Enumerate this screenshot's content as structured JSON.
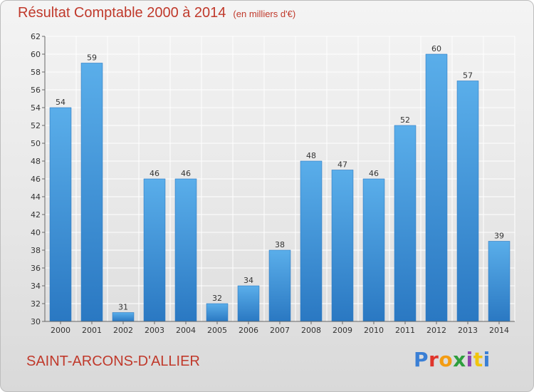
{
  "title": {
    "main": "Résultat Comptable 2000 à 2014",
    "unit": "(en milliers d'€)"
  },
  "footer": {
    "town": "SAINT-ARCONS-D'ALLIER",
    "logo": "Proxiti",
    "logo_colors": [
      "#3a7fd5",
      "#e0342b",
      "#f39c12",
      "#2e9e3e",
      "#8e44ad",
      "#f1c40f",
      "#3a7fd5"
    ]
  },
  "colors": {
    "bar": "#4a9fe0",
    "bar_dark": "#2a78c2",
    "grid": "#ffffff",
    "accent": "#c0392b"
  },
  "chart_data": {
    "type": "bar",
    "categories": [
      "2000",
      "2001",
      "2002",
      "2003",
      "2004",
      "2005",
      "2006",
      "2007",
      "2008",
      "2009",
      "2010",
      "2011",
      "2012",
      "2013",
      "2014"
    ],
    "values": [
      54,
      59,
      31,
      46,
      46,
      32,
      34,
      38,
      48,
      47,
      46,
      52,
      60,
      57,
      39
    ],
    "title": "Résultat Comptable 2000 à 2014",
    "xlabel": "",
    "ylabel": "",
    "ylim": [
      30,
      62
    ],
    "yticks": [
      30,
      32,
      34,
      36,
      38,
      40,
      42,
      44,
      46,
      48,
      50,
      52,
      54,
      56,
      58,
      60,
      62
    ],
    "grid": true,
    "data_labels": true
  }
}
